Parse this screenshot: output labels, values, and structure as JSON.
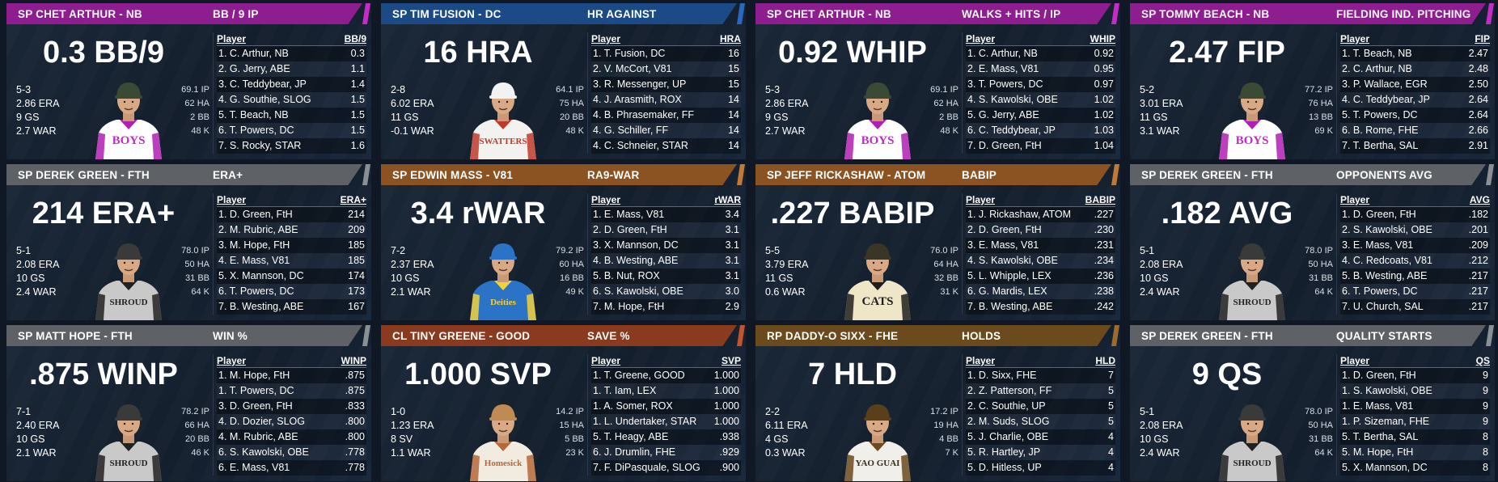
{
  "leader_label": "Player",
  "cards": [
    {
      "color": "#8e1e8f",
      "stripe": "#c62bc8",
      "player": "SP CHET ARTHUR - NB",
      "stat": "BB / 9 IP",
      "big": "0.3 BB/9",
      "lines": [
        "5-3",
        "2.86 ERA",
        "9 GS",
        "2.7 WAR"
      ],
      "side": [
        "69.1 IP",
        "62 HA",
        "2 BB",
        "48 K"
      ],
      "jersey": "#ffffff",
      "trim": "#b01fb3",
      "letters": "BOYS",
      "letter_color": "#c32ac7",
      "cap": "#3b4a35",
      "col": "BB/9",
      "rows": [
        [
          "1. C. Arthur, NB",
          "0.3"
        ],
        [
          "2. G. Jerry, ABE",
          "1.1"
        ],
        [
          "3. C. Teddybear, JP",
          "1.4"
        ],
        [
          "4. G. Southie, SLOG",
          "1.5"
        ],
        [
          "5. T. Beach, NB",
          "1.5"
        ],
        [
          "6. T. Powers, DC",
          "1.5"
        ],
        [
          "7. S. Rocky, STAR",
          "1.6"
        ]
      ]
    },
    {
      "color": "#1b4a86",
      "stripe": "#2a68c0",
      "player": "SP TIM FUSION - DC",
      "stat": "HR AGAINST",
      "big": "16 HRA",
      "lines": [
        "2-8",
        "6.02 ERA",
        "11 GS",
        "-0.1 WAR"
      ],
      "side": [
        "64.1 IP",
        "75 HA",
        "20 BB",
        "48 K"
      ],
      "jersey": "#f4f2ee",
      "trim": "#c0392b",
      "letters": "SWATTERS",
      "letter_color": "#c0392b",
      "cap": "#f2f2f2",
      "col": "HRA",
      "rows": [
        [
          "1. T. Fusion, DC",
          "16"
        ],
        [
          "2. V. McCort, V81",
          "15"
        ],
        [
          "3. R. Messenger, UP",
          "15"
        ],
        [
          "4. J. Arasmith, ROX",
          "14"
        ],
        [
          "4. B. Phrasemaker, FF",
          "14"
        ],
        [
          "4. G. Schiller, FF",
          "14"
        ],
        [
          "4. C. Schneier, STAR",
          "14"
        ]
      ]
    },
    {
      "color": "#8e1e8f",
      "stripe": "#c62bc8",
      "player": "SP CHET ARTHUR - NB",
      "stat": "WALKS + HITS / IP",
      "big": "0.92 WHIP",
      "lines": [
        "5-3",
        "2.86 ERA",
        "9 GS",
        "2.7 WAR"
      ],
      "side": [
        "69.1 IP",
        "62 HA",
        "2 BB",
        "48 K"
      ],
      "jersey": "#ffffff",
      "trim": "#b01fb3",
      "letters": "BOYS",
      "letter_color": "#c32ac7",
      "cap": "#3b4a35",
      "col": "WHIP",
      "rows": [
        [
          "1. C. Arthur, NB",
          "0.92"
        ],
        [
          "2. E. Mass, V81",
          "0.95"
        ],
        [
          "3. T. Powers, DC",
          "0.97"
        ],
        [
          "4. S. Kawolski, OBE",
          "1.02"
        ],
        [
          "5. G. Jerry, ABE",
          "1.02"
        ],
        [
          "6. C. Teddybear, JP",
          "1.03"
        ],
        [
          "7. D. Green, FtH",
          "1.04"
        ]
      ]
    },
    {
      "color": "#8e1e8f",
      "stripe": "#c62bc8",
      "player": "SP TOMMY BEACH - NB",
      "stat": "FIELDING IND. PITCHING",
      "big": "2.47 FIP",
      "lines": [
        "5-2",
        "3.01 ERA",
        "11 GS",
        "3.1 WAR"
      ],
      "side": [
        "77.2 IP",
        "76 HA",
        "13 BB",
        "69 K"
      ],
      "jersey": "#ffffff",
      "trim": "#b01fb3",
      "letters": "BOYS",
      "letter_color": "#c32ac7",
      "cap": "#3b4a35",
      "col": "FIP",
      "rows": [
        [
          "1. T. Beach, NB",
          "2.47"
        ],
        [
          "2. C. Arthur, NB",
          "2.48"
        ],
        [
          "3. P. Wallace, EGR",
          "2.50"
        ],
        [
          "4. C. Teddybear, JP",
          "2.64"
        ],
        [
          "5. T. Powers, DC",
          "2.64"
        ],
        [
          "6. B. Rome, FHE",
          "2.66"
        ],
        [
          "7. T. Bertha, SAL",
          "2.91"
        ]
      ]
    },
    {
      "color": "#5e6266",
      "stripe": "#8a8f94",
      "player": "SP DEREK GREEN - FTH",
      "stat": "ERA+",
      "big": "214 ERA+",
      "lines": [
        "5-1",
        "2.08 ERA",
        "10 GS",
        "2.4 WAR"
      ],
      "side": [
        "78.0 IP",
        "50 HA",
        "31 BB",
        "64 K"
      ],
      "jersey": "#c9c9c9",
      "trim": "#222222",
      "letters": "SHROUD",
      "letter_color": "#222222",
      "cap": "#3a3a3a",
      "col": "ERA+",
      "rows": [
        [
          "1. D. Green, FtH",
          "214"
        ],
        [
          "2. M. Rubric, ABE",
          "209"
        ],
        [
          "3. M. Hope, FtH",
          "185"
        ],
        [
          "4. E. Mass, V81",
          "185"
        ],
        [
          "5. X. Mannson, DC",
          "174"
        ],
        [
          "6. T. Powers, DC",
          "173"
        ],
        [
          "7. B. Westing, ABE",
          "167"
        ]
      ]
    },
    {
      "color": "#8a5321",
      "stripe": "#c07a34",
      "player": "SP EDWIN MASS - V81",
      "stat": "RA9-WAR",
      "big": "3.4 rWAR",
      "lines": [
        "7-2",
        "2.37 ERA",
        "10 GS",
        "2.1 WAR"
      ],
      "side": [
        "79.2 IP",
        "60 HA",
        "16 BB",
        "49 K"
      ],
      "jersey": "#2a73c7",
      "trim": "#f2d23a",
      "letters": "Deities",
      "letter_color": "#f2d23a",
      "cap": "#2a73c7",
      "col": "rWAR",
      "rows": [
        [
          "1. E. Mass, V81",
          "3.4"
        ],
        [
          "2. D. Green, FtH",
          "3.1"
        ],
        [
          "3. X. Mannson, DC",
          "3.1"
        ],
        [
          "4. B. Westing, ABE",
          "3.1"
        ],
        [
          "5. B. Nut, ROX",
          "3.1"
        ],
        [
          "6. S. Kawolski, OBE",
          "3.0"
        ],
        [
          "7. M. Hope, FtH",
          "2.9"
        ]
      ]
    },
    {
      "color": "#8a5321",
      "stripe": "#c07a34",
      "player": "SP JEFF RICKASHAW - ATOM",
      "stat": "BABIP",
      "big": ".227 BABIP",
      "lines": [
        "5-5",
        "3.79 ERA",
        "11 GS",
        "0.6 WAR"
      ],
      "side": [
        "76.0 IP",
        "64 HA",
        "32 BB",
        "31 K"
      ],
      "jersey": "#efe6c8",
      "trim": "#1e1e1e",
      "letters": "CATS",
      "letter_color": "#1e1e1e",
      "cap": "#3a3526",
      "col": "BABIP",
      "rows": [
        [
          "1. J. Rickashaw, ATOM",
          ".227"
        ],
        [
          "2. D. Green, FtH",
          ".230"
        ],
        [
          "3. E. Mass, V81",
          ".231"
        ],
        [
          "4. S. Kawolski, OBE",
          ".234"
        ],
        [
          "5. L. Whipple, LEX",
          ".236"
        ],
        [
          "6. G. Mardis, LEX",
          ".238"
        ],
        [
          "7. B. Westing, ABE",
          ".242"
        ]
      ]
    },
    {
      "color": "#5e6266",
      "stripe": "#8a8f94",
      "player": "SP DEREK GREEN - FTH",
      "stat": "OPPONENTS AVG",
      "big": ".182 AVG",
      "lines": [
        "5-1",
        "2.08 ERA",
        "10 GS",
        "2.4 WAR"
      ],
      "side": [
        "78.0 IP",
        "50 HA",
        "31 BB",
        "64 K"
      ],
      "jersey": "#c9c9c9",
      "trim": "#222222",
      "letters": "SHROUD",
      "letter_color": "#222222",
      "cap": "#3a3a3a",
      "col": "AVG",
      "rows": [
        [
          "1. D. Green, FtH",
          ".182"
        ],
        [
          "2. S. Kawolski, OBE",
          ".201"
        ],
        [
          "3. E. Mass, V81",
          ".209"
        ],
        [
          "4. C. Redcoats, V81",
          ".212"
        ],
        [
          "5. B. Westing, ABE",
          ".217"
        ],
        [
          "6. T. Powers, DC",
          ".217"
        ],
        [
          "7. U. Church, SAL",
          ".217"
        ]
      ]
    },
    {
      "color": "#5e6266",
      "stripe": "#8a8f94",
      "player": "SP MATT HOPE - FTH",
      "stat": "WIN %",
      "big": ".875 WINP",
      "lines": [
        "7-1",
        "2.40 ERA",
        "10 GS",
        "2.1 WAR"
      ],
      "side": [
        "78.2 IP",
        "66 HA",
        "20 BB",
        "46 K"
      ],
      "jersey": "#c9c9c9",
      "trim": "#222222",
      "letters": "SHROUD",
      "letter_color": "#222222",
      "cap": "#3a3a3a",
      "col": "WINP",
      "rows": [
        [
          "1. M. Hope, FtH",
          ".875"
        ],
        [
          "1. T. Powers, DC",
          ".875"
        ],
        [
          "3. D. Green, FtH",
          ".833"
        ],
        [
          "4. D. Dozier, SLOG",
          ".800"
        ],
        [
          "4. M. Rubric, ABE",
          ".800"
        ],
        [
          "6. S. Kawolski, OBE",
          ".778"
        ],
        [
          "6. E. Mass, V81",
          ".778"
        ]
      ]
    },
    {
      "color": "#8a3a1f",
      "stripe": "#c0542b",
      "player": "CL TINY GREENE - GOOD",
      "stat": "SAVE %",
      "big": "1.000 SVP",
      "lines": [
        "1-0",
        "1.23 ERA",
        "8 SV",
        "1.1 WAR"
      ],
      "side": [
        "14.2 IP",
        "15 HA",
        "5 BB",
        "23 K"
      ],
      "jersey": "#f1ebe0",
      "trim": "#b5693a",
      "letters": "Homesick",
      "letter_color": "#b5693a",
      "cap": "#c08a55",
      "col": "SVP",
      "rows": [
        [
          "1. T. Greene, GOOD",
          "1.000"
        ],
        [
          "1. T. Iam, LEX",
          "1.000"
        ],
        [
          "1. A. Somer, ROX",
          "1.000"
        ],
        [
          "1. L. Undertaker, STAR",
          "1.000"
        ],
        [
          "5. T. Heagy, ABE",
          ".938"
        ],
        [
          "6. J. Drumlin, FHE",
          ".929"
        ],
        [
          "7. F. DiPasquale, SLOG",
          ".900"
        ]
      ]
    },
    {
      "color": "#6b4a1e",
      "stripe": "#9b6c2c",
      "player": "RP DADDY-O SIXX - FHE",
      "stat": "HOLDS",
      "big": "7 HLD",
      "lines": [
        "2-2",
        "6.11 ERA",
        "4 GS",
        "0.3 WAR"
      ],
      "side": [
        "17.2 IP",
        "19 HA",
        "4 BB",
        "7 K"
      ],
      "jersey": "#f1efe9",
      "trim": "#6b4a1e",
      "letters": "YAO GUAI",
      "letter_color": "#3b2c16",
      "cap": "#5a3f1c",
      "col": "HLD",
      "rows": [
        [
          "1. D. Sixx, FHE",
          "7"
        ],
        [
          "2. Z. Patterson, FF",
          "5"
        ],
        [
          "2. C. Southie, UP",
          "5"
        ],
        [
          "2. M. Suds, SLOG",
          "5"
        ],
        [
          "5. J. Charlie, OBE",
          "4"
        ],
        [
          "5. R. Hartley, JP",
          "4"
        ],
        [
          "5. D. Hitless, UP",
          "4"
        ]
      ]
    },
    {
      "color": "#5e6266",
      "stripe": "#8a8f94",
      "player": "SP DEREK GREEN - FTH",
      "stat": "QUALITY STARTS",
      "big": "9 QS",
      "lines": [
        "5-1",
        "2.08 ERA",
        "10 GS",
        "2.4 WAR"
      ],
      "side": [
        "78.0 IP",
        "50 HA",
        "31 BB",
        "64 K"
      ],
      "jersey": "#c9c9c9",
      "trim": "#222222",
      "letters": "SHROUD",
      "letter_color": "#222222",
      "cap": "#3a3a3a",
      "col": "QS",
      "rows": [
        [
          "1. D. Green, FtH",
          "9"
        ],
        [
          "1. S. Kawolski, OBE",
          "9"
        ],
        [
          "1. E. Mass, V81",
          "9"
        ],
        [
          "1. P. Sizeman, FHE",
          "9"
        ],
        [
          "5. T. Bertha, SAL",
          "8"
        ],
        [
          "5. M. Hope, FtH",
          "8"
        ],
        [
          "5. X. Mannson, DC",
          "8"
        ]
      ]
    }
  ]
}
